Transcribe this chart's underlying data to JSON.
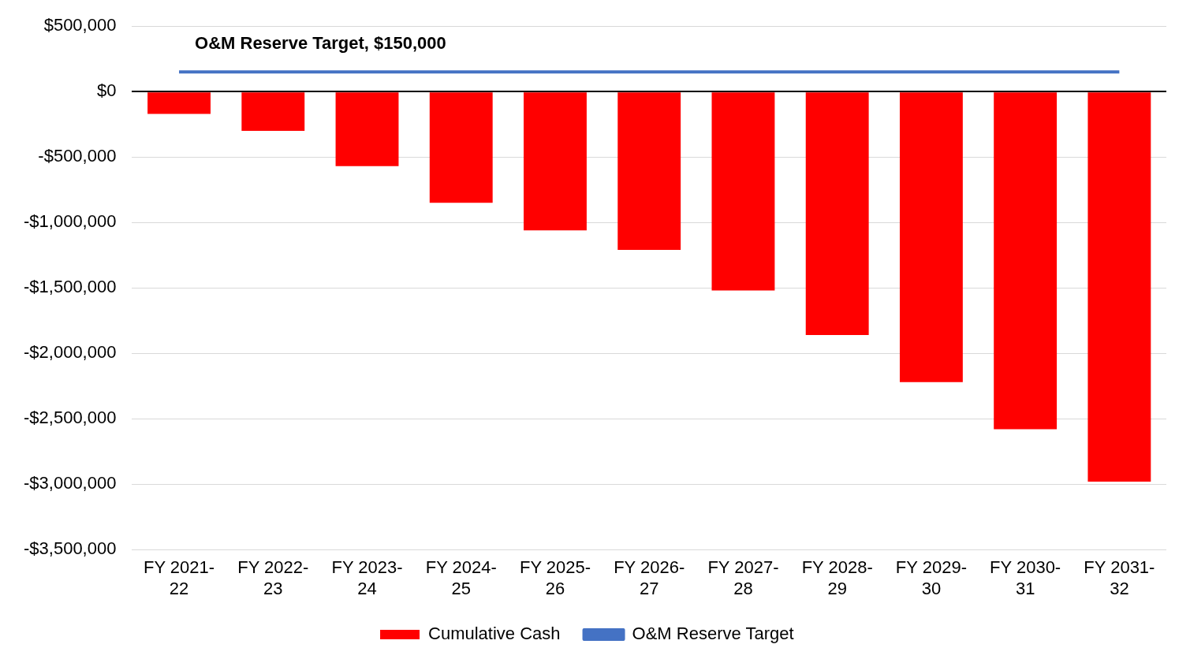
{
  "chart_data": {
    "type": "bar",
    "categories": [
      "FY 2021-22",
      "FY 2022-23",
      "FY 2023-24",
      "FY 2024-25",
      "FY 2025-26",
      "FY 2026-27",
      "FY 2027-28",
      "FY 2028-29",
      "FY 2029-30",
      "FY 2030-31",
      "FY 2031-32"
    ],
    "series": [
      {
        "name": "Cumulative Cash",
        "color": "#ff0000",
        "values": [
          -170000,
          -300000,
          -570000,
          -850000,
          -1060000,
          -1210000,
          -1520000,
          -1860000,
          -2220000,
          -2580000,
          -2980000
        ]
      },
      {
        "name": "O&M Reserve Target",
        "type": "line",
        "color": "#4472c4",
        "values": [
          150000,
          150000,
          150000,
          150000,
          150000,
          150000,
          150000,
          150000,
          150000,
          150000,
          150000
        ]
      }
    ],
    "ylim": [
      -3500000,
      500000
    ],
    "yticks": [
      {
        "value": -3500000,
        "label": "-$3,500,000"
      },
      {
        "value": -3000000,
        "label": "-$3,000,000"
      },
      {
        "value": -2500000,
        "label": "-$2,500,000"
      },
      {
        "value": -2000000,
        "label": "-$2,000,000"
      },
      {
        "value": -1500000,
        "label": "-$1,500,000"
      },
      {
        "value": -1000000,
        "label": "-$1,000,000"
      },
      {
        "value": -500000,
        "label": "-$500,000"
      },
      {
        "value": 0,
        "label": "$0"
      },
      {
        "value": 500000,
        "label": "$500,000"
      }
    ],
    "annotations": [
      {
        "text": "O&M Reserve Target, $150,000",
        "x": "FY 2021-22",
        "y": 150000
      }
    ],
    "grid": "y",
    "legend": "bottom",
    "marker": "none",
    "line_style": "solid"
  }
}
